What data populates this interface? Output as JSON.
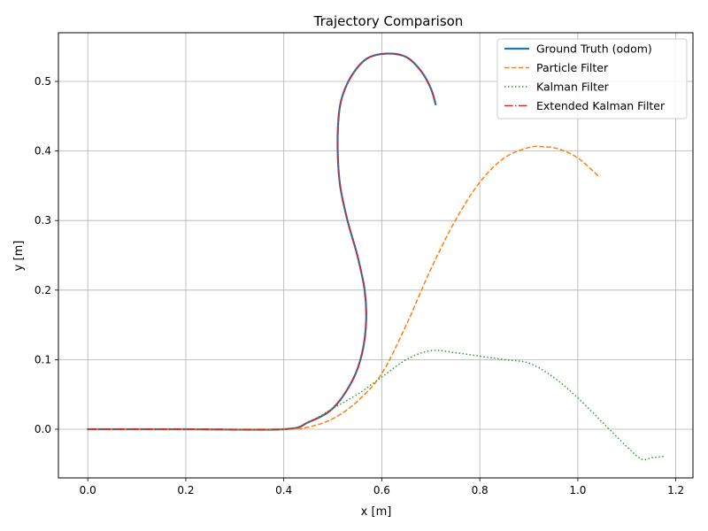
{
  "chart_data": {
    "type": "line",
    "title": "Trajectory Comparison",
    "xlabel": "x [m]",
    "ylabel": "y [m]",
    "xlim": [
      -0.06,
      1.235
    ],
    "ylim": [
      -0.07,
      0.57
    ],
    "xticks": [
      0.0,
      0.2,
      0.4,
      0.6,
      0.8,
      1.0,
      1.2
    ],
    "yticks": [
      0.0,
      0.1,
      0.2,
      0.3,
      0.4,
      0.5
    ],
    "xtick_labels": [
      "0.0",
      "0.2",
      "0.4",
      "0.6",
      "0.8",
      "1.0",
      "1.2"
    ],
    "ytick_labels": [
      "0.0",
      "0.1",
      "0.2",
      "0.3",
      "0.4",
      "0.5"
    ],
    "grid": true,
    "legend_position": "top-right",
    "series": [
      {
        "name": "Ground Truth (odom)",
        "color": "#1f77b4",
        "style": "solid",
        "x": [
          0.0,
          0.2,
          0.4,
          0.45,
          0.5,
          0.54,
          0.56,
          0.568,
          0.565,
          0.55,
          0.53,
          0.515,
          0.51,
          0.512,
          0.52,
          0.54,
          0.57,
          0.61,
          0.65,
          0.68,
          0.7,
          0.71
        ],
        "y": [
          0.0,
          0.0,
          0.0,
          0.01,
          0.03,
          0.07,
          0.11,
          0.155,
          0.2,
          0.25,
          0.3,
          0.35,
          0.4,
          0.45,
          0.48,
          0.51,
          0.533,
          0.54,
          0.535,
          0.515,
          0.49,
          0.467
        ]
      },
      {
        "name": "Particle Filter",
        "color": "#ff7f0e",
        "style": "dashed",
        "x": [
          0.0,
          0.2,
          0.4,
          0.45,
          0.5,
          0.55,
          0.6,
          0.65,
          0.7,
          0.75,
          0.8,
          0.85,
          0.9,
          0.93,
          0.96,
          1.0,
          1.045
        ],
        "y": [
          0.0,
          0.0,
          0.0,
          0.003,
          0.015,
          0.04,
          0.08,
          0.15,
          0.23,
          0.3,
          0.355,
          0.39,
          0.405,
          0.406,
          0.403,
          0.39,
          0.362
        ]
      },
      {
        "name": "Kalman Filter",
        "color": "#2ca02c",
        "style": "dotted",
        "x": [
          0.0,
          0.2,
          0.4,
          0.45,
          0.5,
          0.55,
          0.6,
          0.65,
          0.7,
          0.75,
          0.8,
          0.85,
          0.9,
          0.95,
          1.0,
          1.05,
          1.1,
          1.13,
          1.15,
          1.175
        ],
        "y": [
          0.0,
          0.0,
          0.0,
          0.01,
          0.03,
          0.05,
          0.075,
          0.1,
          0.113,
          0.11,
          0.105,
          0.1,
          0.095,
          0.075,
          0.045,
          0.01,
          -0.025,
          -0.043,
          -0.041,
          -0.039
        ]
      },
      {
        "name": "Extended Kalman Filter",
        "color": "#d62728",
        "style": "dashdot",
        "x": [
          0.0,
          0.2,
          0.4,
          0.45,
          0.5,
          0.54,
          0.56,
          0.568,
          0.565,
          0.55,
          0.53,
          0.515,
          0.51,
          0.512,
          0.52,
          0.54,
          0.57,
          0.61,
          0.65,
          0.68,
          0.7,
          0.71
        ],
        "y": [
          0.0,
          0.0,
          0.0,
          0.01,
          0.03,
          0.07,
          0.11,
          0.155,
          0.2,
          0.25,
          0.3,
          0.35,
          0.4,
          0.45,
          0.48,
          0.51,
          0.533,
          0.54,
          0.535,
          0.515,
          0.49,
          0.467
        ]
      }
    ]
  }
}
